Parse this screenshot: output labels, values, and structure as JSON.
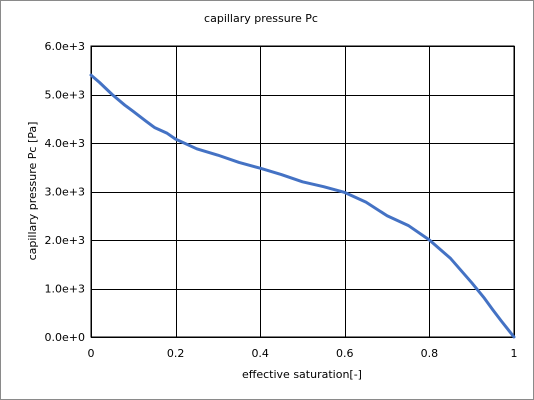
{
  "chart_data": {
    "type": "line",
    "title": "capillary pressure Pc",
    "xlabel": "effective saturation[-]",
    "ylabel": "capillary pressure Pc [Pa]",
    "xlim": [
      0,
      1
    ],
    "ylim": [
      0,
      6000
    ],
    "x_ticks": [
      "0",
      "0.2",
      "0.4",
      "0.6",
      "0.8",
      "1"
    ],
    "x_tick_values": [
      0,
      0.2,
      0.4,
      0.6,
      0.8,
      1
    ],
    "y_ticks": [
      "0.0e+0",
      "1.0e+3",
      "2.0e+3",
      "3.0e+3",
      "4.0e+3",
      "5.0e+3",
      "6.0e+3"
    ],
    "y_tick_values": [
      0,
      1000,
      2000,
      3000,
      4000,
      5000,
      6000
    ],
    "grid": true,
    "legend": "none",
    "series_color": "#4472c4",
    "series": [
      {
        "x": [
          0,
          0.02,
          0.05,
          0.08,
          0.1,
          0.13,
          0.15,
          0.18,
          0.2,
          0.25,
          0.3,
          0.35,
          0.4,
          0.45,
          0.5,
          0.55,
          0.6,
          0.65,
          0.7,
          0.75,
          0.8,
          0.85,
          0.9,
          0.93,
          0.95,
          0.97,
          0.99,
          1.0
        ],
        "y": [
          5400,
          5250,
          5000,
          4780,
          4650,
          4450,
          4320,
          4200,
          4080,
          3880,
          3750,
          3600,
          3480,
          3350,
          3200,
          3100,
          2980,
          2780,
          2500,
          2300,
          2000,
          1620,
          1120,
          800,
          560,
          330,
          110,
          0
        ]
      }
    ]
  }
}
